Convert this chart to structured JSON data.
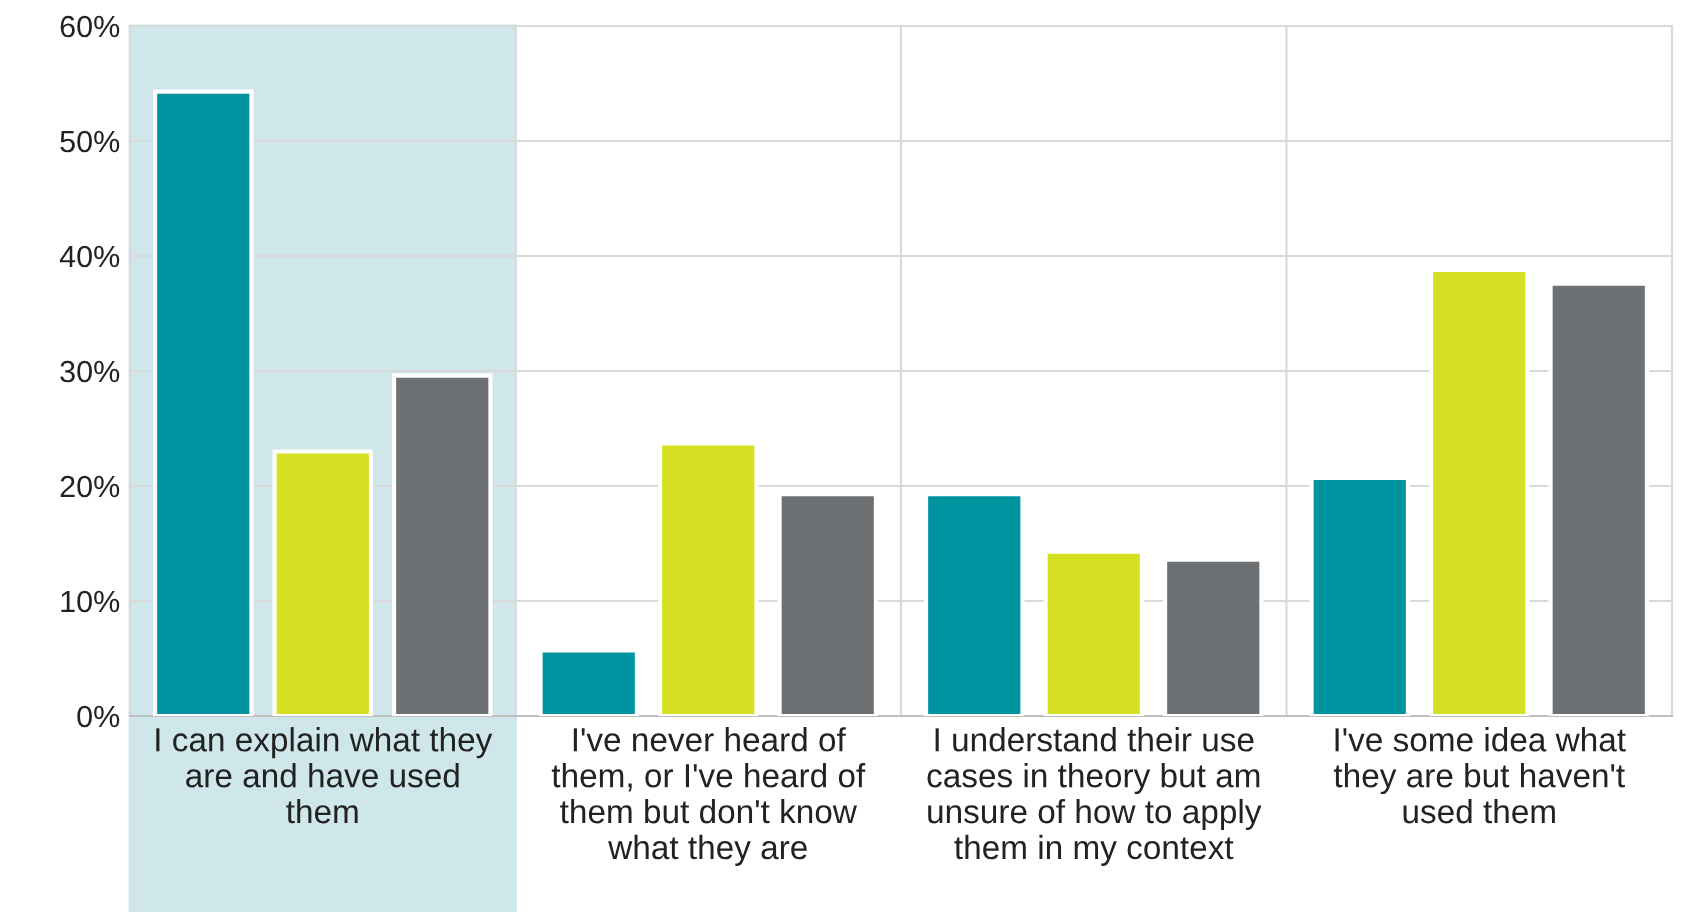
{
  "chart_data": {
    "type": "bar",
    "categories": [
      "I can explain what they\nare and have used\nthem",
      "I've never heard of\nthem, or I've heard of\nthem but don't know\nwhat they are",
      "I understand their use\ncases in theory but am\nunsure of how to apply\nthem in my context",
      "I've some idea what\nthey are but haven't\nused them"
    ],
    "series": [
      {
        "color": "#0093a0",
        "values": [
          54.3,
          5.7,
          19.3,
          20.7
        ]
      },
      {
        "color": "#d4e021",
        "values": [
          23.0,
          23.7,
          14.3,
          38.8
        ]
      },
      {
        "color": "#6d7174",
        "values": [
          29.6,
          19.3,
          13.6,
          37.6
        ]
      }
    ],
    "ylim": [
      0,
      60
    ],
    "yticks": [
      {
        "value": 0,
        "label": "0%"
      },
      {
        "value": 10,
        "label": "10%"
      },
      {
        "value": 20,
        "label": "20%"
      },
      {
        "value": 30,
        "label": "30%"
      },
      {
        "value": 40,
        "label": "40%"
      },
      {
        "value": 50,
        "label": "50%"
      },
      {
        "value": 60,
        "label": "60%"
      }
    ],
    "grid": true,
    "bands": [
      {
        "axis": "x",
        "from": "I can explain what they\nare and have used\nthem",
        "to": "I can explain what they\nare and have used\nthem",
        "color": "#cfe6ea"
      }
    ]
  }
}
